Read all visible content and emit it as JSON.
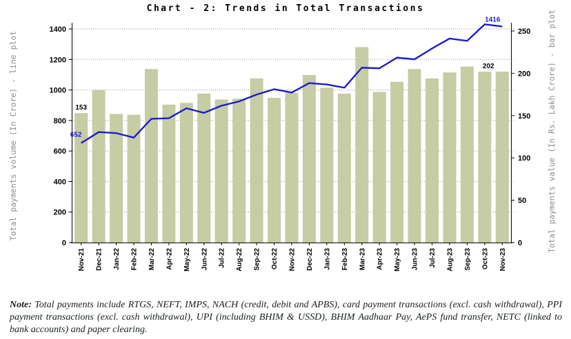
{
  "title": "Chart - 2: Trends in Total Transactions",
  "note": {
    "label": "Note:",
    "text": "Total payments include RTGS, NEFT, IMPS, NACH (credit, debit and APBS), card payment transactions (excl. cash withdrawal), PPI payment transactions (excl. cash withdrawal), UPI (including BHIM & USSD), BHIM Aadhaar Pay, AePS fund transfer, NETC (linked to bank accounts) and paper clearing."
  },
  "chart_data": {
    "type": "bar+line combo",
    "categories": [
      "Nov-21",
      "Dec-21",
      "Jan-22",
      "Feb-22",
      "Mar-22",
      "Apr-22",
      "May-22",
      "Jun-22",
      "Jul-22",
      "Aug-22",
      "Sep-22",
      "Oct-22",
      "Nov-22",
      "Dec-22",
      "Jan-23",
      "Feb-23",
      "Mar-23",
      "Apr-23",
      "May-23",
      "Jun-23",
      "Jul-23",
      "Aug-23",
      "Sep-23",
      "Oct-23",
      "Nov-23"
    ],
    "series": [
      {
        "name": "Total payments value (bar plot)",
        "type": "bar",
        "axis": "right",
        "values": [
          153,
          180,
          152,
          151,
          205,
          163,
          165,
          176,
          169,
          170,
          194,
          171,
          177,
          198,
          183,
          176,
          231,
          178,
          190,
          205,
          194,
          201,
          208,
          202,
          202
        ]
      },
      {
        "name": "Total payments volume (line plot)",
        "type": "line",
        "axis": "left",
        "values": [
          652,
          724,
          717,
          688,
          811,
          815,
          880,
          850,
          897,
          925,
          970,
          1005,
          983,
          1045,
          1036,
          1015,
          1146,
          1142,
          1212,
          1201,
          1272,
          1337,
          1322,
          1430,
          1416
        ]
      }
    ],
    "left_axis": {
      "label": "Total payments volume (In Crore) - line plot",
      "ticks": [
        0,
        200,
        400,
        600,
        800,
        1000,
        1200,
        1400
      ],
      "range": [
        0,
        1400
      ]
    },
    "right_axis": {
      "label": "Total payments value (In Rs. Lakh Crore) - bar plot",
      "ticks": [
        0,
        50,
        100,
        150,
        200,
        250
      ],
      "range": [
        0,
        250
      ]
    },
    "annotations": [
      {
        "text": "153",
        "target": "bar",
        "index": 0,
        "color": "#000000"
      },
      {
        "text": "652",
        "target": "line",
        "index": 0,
        "color": "#1c1ccf"
      },
      {
        "text": "202",
        "target": "bar",
        "index": 24,
        "color": "#000000"
      },
      {
        "text": "1416",
        "target": "line",
        "index": 24,
        "color": "#1c1ccf"
      }
    ],
    "colors": {
      "bar": "#c6cca3",
      "line": "#1c1ccf",
      "grid": "#8c8c8c",
      "axis": "#000000",
      "axis_title": "#8f8f8f"
    },
    "grid": "horizontal dotted lines at left-axis ticks",
    "legend": "none"
  }
}
